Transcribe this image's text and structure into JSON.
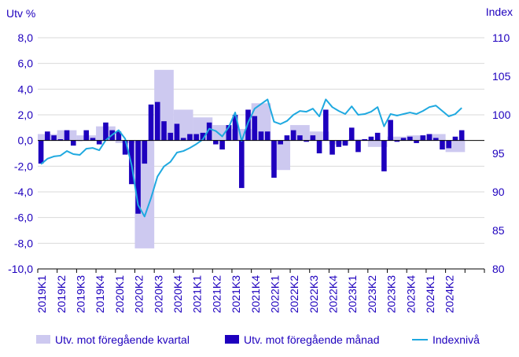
{
  "chart_data": {
    "type": "bar+line",
    "y_left_title": "Utv %",
    "y_right_title": "Index",
    "ylim_left": [
      -10,
      8
    ],
    "ylim_right": [
      80,
      110
    ],
    "yticks_left": [
      "8,0",
      "6,0",
      "4,0",
      "2,0",
      "0,0",
      "-2,0",
      "-4,0",
      "-6,0",
      "-8,0",
      "-10,0"
    ],
    "yticks_right": [
      "110",
      "105",
      "100",
      "95",
      "90",
      "85",
      "80"
    ],
    "x_tick_labels": [
      "2019K1",
      "2019K2",
      "2019K3",
      "2019K4",
      "2020K1",
      "2020K2",
      "2020K3",
      "2020K4",
      "2021K1",
      "2021K2",
      "2021K3",
      "2021K4",
      "2022K1",
      "2022K2",
      "2022K3",
      "2022K4",
      "2023K1",
      "2023K2",
      "2023K3",
      "2023K4",
      "2024K1",
      "2024K2"
    ],
    "series": [
      {
        "name": "Utv. mot föregående kvartal",
        "kind": "bar-quarterly",
        "color": "#cdc9f0",
        "values": [
          0.5,
          0.8,
          0.4,
          1.1,
          -0.2,
          -8.4,
          5.5,
          2.4,
          1.8,
          1.2,
          0.9,
          2.9,
          -2.3,
          1.2,
          0.7,
          -0.3,
          0.1,
          -0.5,
          0.3,
          0.4,
          0.5,
          -0.9
        ]
      },
      {
        "name": "Utv. mot föregående månad",
        "kind": "bar-monthly",
        "color": "#1e00be",
        "values": [
          -1.8,
          0.7,
          0.4,
          0.1,
          0.8,
          -0.4,
          0.0,
          0.8,
          0.2,
          -0.3,
          1.4,
          0.8,
          0.7,
          -1.1,
          -3.4,
          -5.7,
          -1.8,
          2.8,
          3.0,
          1.5,
          0.6,
          1.3,
          0.2,
          0.5,
          0.5,
          0.6,
          1.4,
          -0.3,
          -0.7,
          1.2,
          2.0,
          -3.7,
          2.4,
          1.9,
          0.7,
          0.7,
          -2.9,
          -0.3,
          0.4,
          0.8,
          0.4,
          -0.1,
          0.4,
          -1.0,
          2.4,
          -1.1,
          -0.5,
          -0.4,
          1.0,
          -0.9,
          0.1,
          0.3,
          0.6,
          -2.4,
          1.6,
          -0.1,
          0.2,
          0.3,
          -0.2,
          0.4,
          0.5,
          0.2,
          -0.7,
          -0.6,
          0.3,
          0.8
        ]
      },
      {
        "name": "Indexnivå",
        "kind": "line",
        "color": "#1fa9e0",
        "values": [
          93.6,
          94.3,
          94.6,
          94.7,
          95.3,
          94.9,
          94.8,
          95.6,
          95.7,
          95.4,
          96.7,
          97.4,
          98.0,
          96.9,
          93.5,
          88.3,
          86.8,
          89.2,
          92.0,
          93.3,
          93.9,
          95.1,
          95.3,
          95.7,
          96.2,
          96.8,
          98.2,
          97.9,
          97.2,
          98.4,
          100.3,
          96.6,
          99.0,
          100.8,
          101.4,
          102.0,
          99.1,
          98.8,
          99.2,
          100.0,
          100.5,
          100.4,
          100.8,
          99.8,
          102.0,
          101.0,
          100.5,
          100.1,
          101.1,
          100.0,
          100.1,
          100.4,
          101.0,
          98.5,
          100.1,
          99.9,
          100.1,
          100.3,
          100.1,
          100.5,
          101.0,
          101.2,
          100.5,
          99.8,
          100.1,
          100.9
        ]
      }
    ],
    "legend": [
      "Utv. mot föregående kvartal",
      "Utv. mot föregående månad",
      "Indexnivå"
    ],
    "legend_position": "bottom"
  }
}
